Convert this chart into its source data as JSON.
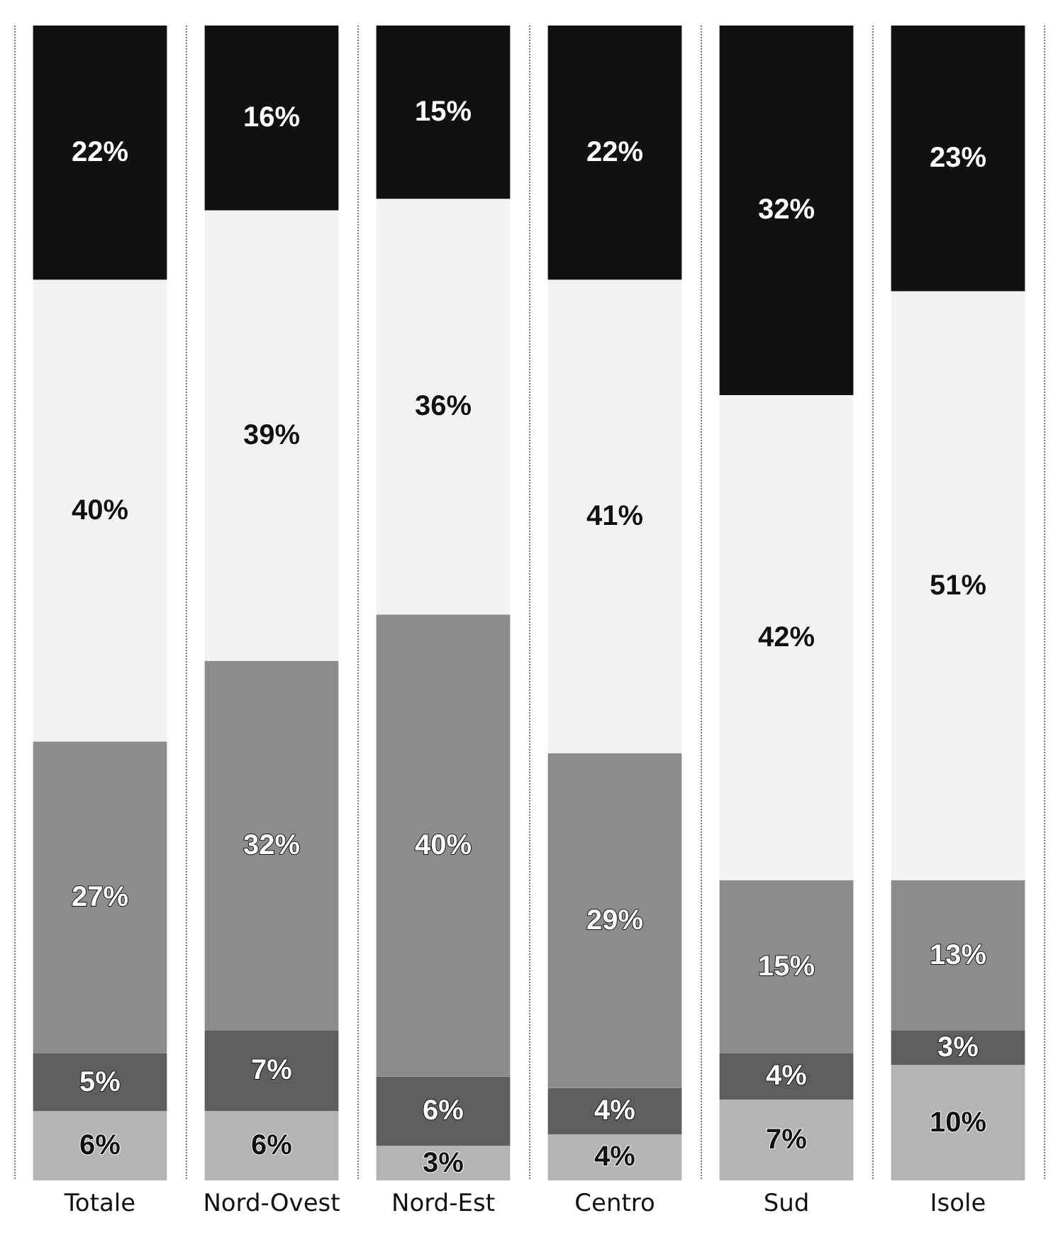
{
  "chart_data": {
    "type": "bar",
    "stacked": true,
    "categories": [
      "Totale",
      "Nord-Ovest",
      "Nord-Est",
      "Centro",
      "Sud",
      "Isole"
    ],
    "series": [
      {
        "color": "#b4b4b4",
        "values": [
          6,
          6,
          3,
          4,
          7,
          10
        ],
        "value_labels": [
          "6%",
          "6%",
          "3%",
          "4%",
          "7%",
          "10%"
        ]
      },
      {
        "color": "#5e5e5e",
        "values": [
          5,
          7,
          6,
          4,
          4,
          3
        ],
        "value_labels": [
          "5%",
          "7%",
          "6%",
          "4%",
          "4%",
          "3%"
        ]
      },
      {
        "color": "#8c8c8c",
        "values": [
          27,
          32,
          40,
          29,
          15,
          13
        ],
        "value_labels": [
          "27%",
          "32%",
          "40%",
          "29%",
          "15%",
          "13%"
        ]
      },
      {
        "color": "#f2f2f2",
        "values": [
          40,
          39,
          36,
          41,
          42,
          51
        ],
        "value_labels": [
          "40%",
          "39%",
          "36%",
          "41%",
          "42%",
          "51%"
        ]
      },
      {
        "color": "#111111",
        "values": [
          22,
          16,
          15,
          22,
          32,
          23
        ],
        "value_labels": [
          "22%",
          "16%",
          "15%",
          "22%",
          "32%",
          "23%"
        ]
      }
    ],
    "ylim": [
      0,
      100
    ],
    "tick_labels": "x",
    "grid": "x"
  }
}
